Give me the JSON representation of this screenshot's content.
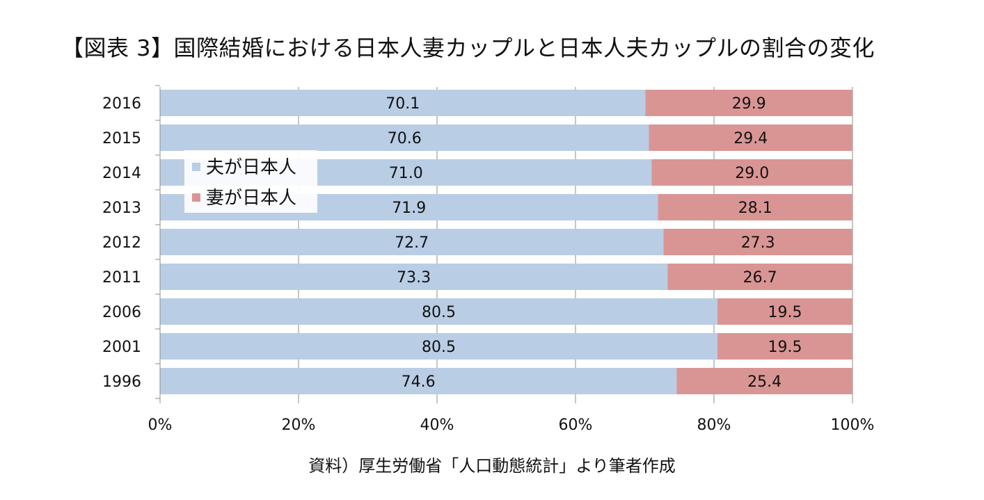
{
  "chart_data": {
    "type": "bar",
    "orientation": "horizontal",
    "stacked": true,
    "percent": true,
    "title": "【図表 3】国際結婚における日本人妻カップルと日本人夫カップルの割合の変化",
    "source": "資料）厚生労働省「人口動態統計」より筆者作成",
    "categories": [
      "2016",
      "2015",
      "2014",
      "2013",
      "2012",
      "2011",
      "2006",
      "2001",
      "1996"
    ],
    "series": [
      {
        "name": "夫が日本人",
        "color": "#b9cde5",
        "values": [
          70.1,
          70.6,
          71.0,
          71.9,
          72.7,
          73.3,
          80.5,
          80.5,
          74.6
        ]
      },
      {
        "name": "妻が日本人",
        "color": "#d99594",
        "values": [
          29.9,
          29.4,
          29.0,
          28.1,
          27.3,
          26.7,
          19.5,
          19.5,
          25.4
        ]
      }
    ],
    "xlim": [
      0,
      100
    ],
    "xticks": [
      "0%",
      "20%",
      "40%",
      "60%",
      "80%",
      "100%"
    ],
    "xlabel": "",
    "ylabel": "",
    "grid": true,
    "legend_position": "top-left"
  }
}
